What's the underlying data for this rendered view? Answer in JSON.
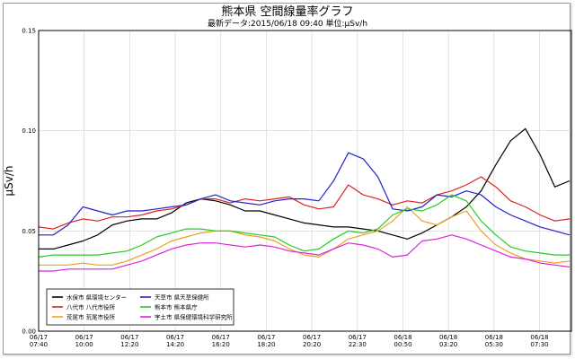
{
  "title": "熊本県 空間線量率グラフ",
  "subtitle": "最新データ:2015/06/18 09:40 単位:μSv/h",
  "chart_data": {
    "type": "line",
    "ylabel": "μSv/h",
    "ylim": [
      0,
      0.15
    ],
    "yticks": [
      "0.00",
      "0.05",
      "0.10",
      "0.15"
    ],
    "grid": true,
    "legend_position": "bottom-left",
    "xticks": [
      {
        "date": "06/17",
        "time": "07:40"
      },
      {
        "date": "06/17",
        "time": "10:00"
      },
      {
        "date": "06/17",
        "time": "12:20"
      },
      {
        "date": "06/17",
        "time": "14:20"
      },
      {
        "date": "06/17",
        "time": "16:20"
      },
      {
        "date": "06/17",
        "time": "18:20"
      },
      {
        "date": "06/17",
        "time": "20:20"
      },
      {
        "date": "06/17",
        "time": "22:30"
      },
      {
        "date": "06/18",
        "time": "00:50"
      },
      {
        "date": "06/18",
        "time": "03:20"
      },
      {
        "date": "06/18",
        "time": "05:30"
      },
      {
        "date": "06/18",
        "time": "07:30"
      }
    ],
    "x": [
      "07:40",
      "08:30",
      "09:20",
      "10:00",
      "10:50",
      "11:30",
      "12:20",
      "13:00",
      "13:40",
      "14:20",
      "15:00",
      "15:40",
      "16:20",
      "17:00",
      "17:40",
      "18:20",
      "19:00",
      "19:40",
      "20:20",
      "21:00",
      "21:40",
      "22:30",
      "23:10",
      "00:00",
      "00:50",
      "01:40",
      "02:30",
      "03:20",
      "04:10",
      "04:50",
      "05:30",
      "06:10",
      "06:50",
      "07:30",
      "08:10",
      "09:00",
      "09:40"
    ],
    "series": [
      {
        "name": "水俣市 県環境センター",
        "color": "#000000",
        "values": [
          0.041,
          0.041,
          0.043,
          0.045,
          0.048,
          0.053,
          0.055,
          0.056,
          0.056,
          0.059,
          0.064,
          0.066,
          0.065,
          0.063,
          0.06,
          0.06,
          0.058,
          0.056,
          0.054,
          0.053,
          0.052,
          0.052,
          0.051,
          0.05,
          0.048,
          0.046,
          0.049,
          0.053,
          0.057,
          0.062,
          0.07,
          0.083,
          0.095,
          0.101,
          0.088,
          0.072,
          0.075
        ]
      },
      {
        "name": "八代市 八代市役所",
        "color": "#dd2222",
        "values": [
          0.052,
          0.051,
          0.054,
          0.056,
          0.055,
          0.057,
          0.057,
          0.058,
          0.06,
          0.061,
          0.063,
          0.066,
          0.066,
          0.064,
          0.066,
          0.065,
          0.066,
          0.067,
          0.063,
          0.061,
          0.062,
          0.073,
          0.068,
          0.066,
          0.063,
          0.065,
          0.064,
          0.068,
          0.07,
          0.073,
          0.077,
          0.072,
          0.065,
          0.062,
          0.058,
          0.055,
          0.056
        ]
      },
      {
        "name": "荒尾市 荒尾市役所",
        "color": "#eea020",
        "values": [
          0.033,
          0.033,
          0.033,
          0.034,
          0.033,
          0.033,
          0.035,
          0.038,
          0.041,
          0.045,
          0.047,
          0.049,
          0.05,
          0.05,
          0.048,
          0.047,
          0.045,
          0.041,
          0.038,
          0.037,
          0.041,
          0.046,
          0.048,
          0.05,
          0.055,
          0.062,
          0.055,
          0.053,
          0.057,
          0.06,
          0.05,
          0.043,
          0.039,
          0.036,
          0.035,
          0.034,
          0.035
        ]
      },
      {
        "name": "天草市 県天草保健所",
        "color": "#2222cc",
        "values": [
          0.048,
          0.048,
          0.053,
          0.062,
          0.06,
          0.058,
          0.06,
          0.06,
          0.061,
          0.062,
          0.063,
          0.066,
          0.068,
          0.065,
          0.064,
          0.063,
          0.065,
          0.066,
          0.066,
          0.065,
          0.075,
          0.089,
          0.086,
          0.077,
          0.061,
          0.06,
          0.062,
          0.068,
          0.067,
          0.07,
          0.068,
          0.062,
          0.058,
          0.055,
          0.052,
          0.05,
          0.048
        ]
      },
      {
        "name": "熊本市 熊本県庁",
        "color": "#22cc22",
        "values": [
          0.037,
          0.038,
          0.038,
          0.038,
          0.038,
          0.039,
          0.04,
          0.043,
          0.047,
          0.049,
          0.051,
          0.051,
          0.05,
          0.05,
          0.049,
          0.048,
          0.047,
          0.043,
          0.04,
          0.041,
          0.046,
          0.05,
          0.049,
          0.051,
          0.058,
          0.061,
          0.06,
          0.063,
          0.068,
          0.065,
          0.055,
          0.048,
          0.042,
          0.04,
          0.039,
          0.038,
          0.038
        ]
      },
      {
        "name": "宇土市 県保健環境科学研究所",
        "color": "#dd22dd",
        "values": [
          0.03,
          0.03,
          0.031,
          0.031,
          0.031,
          0.031,
          0.033,
          0.035,
          0.038,
          0.041,
          0.043,
          0.044,
          0.044,
          0.043,
          0.042,
          0.043,
          0.042,
          0.04,
          0.039,
          0.038,
          0.041,
          0.044,
          0.043,
          0.041,
          0.037,
          0.038,
          0.045,
          0.046,
          0.048,
          0.046,
          0.043,
          0.04,
          0.037,
          0.036,
          0.034,
          0.033,
          0.032
        ]
      }
    ]
  }
}
